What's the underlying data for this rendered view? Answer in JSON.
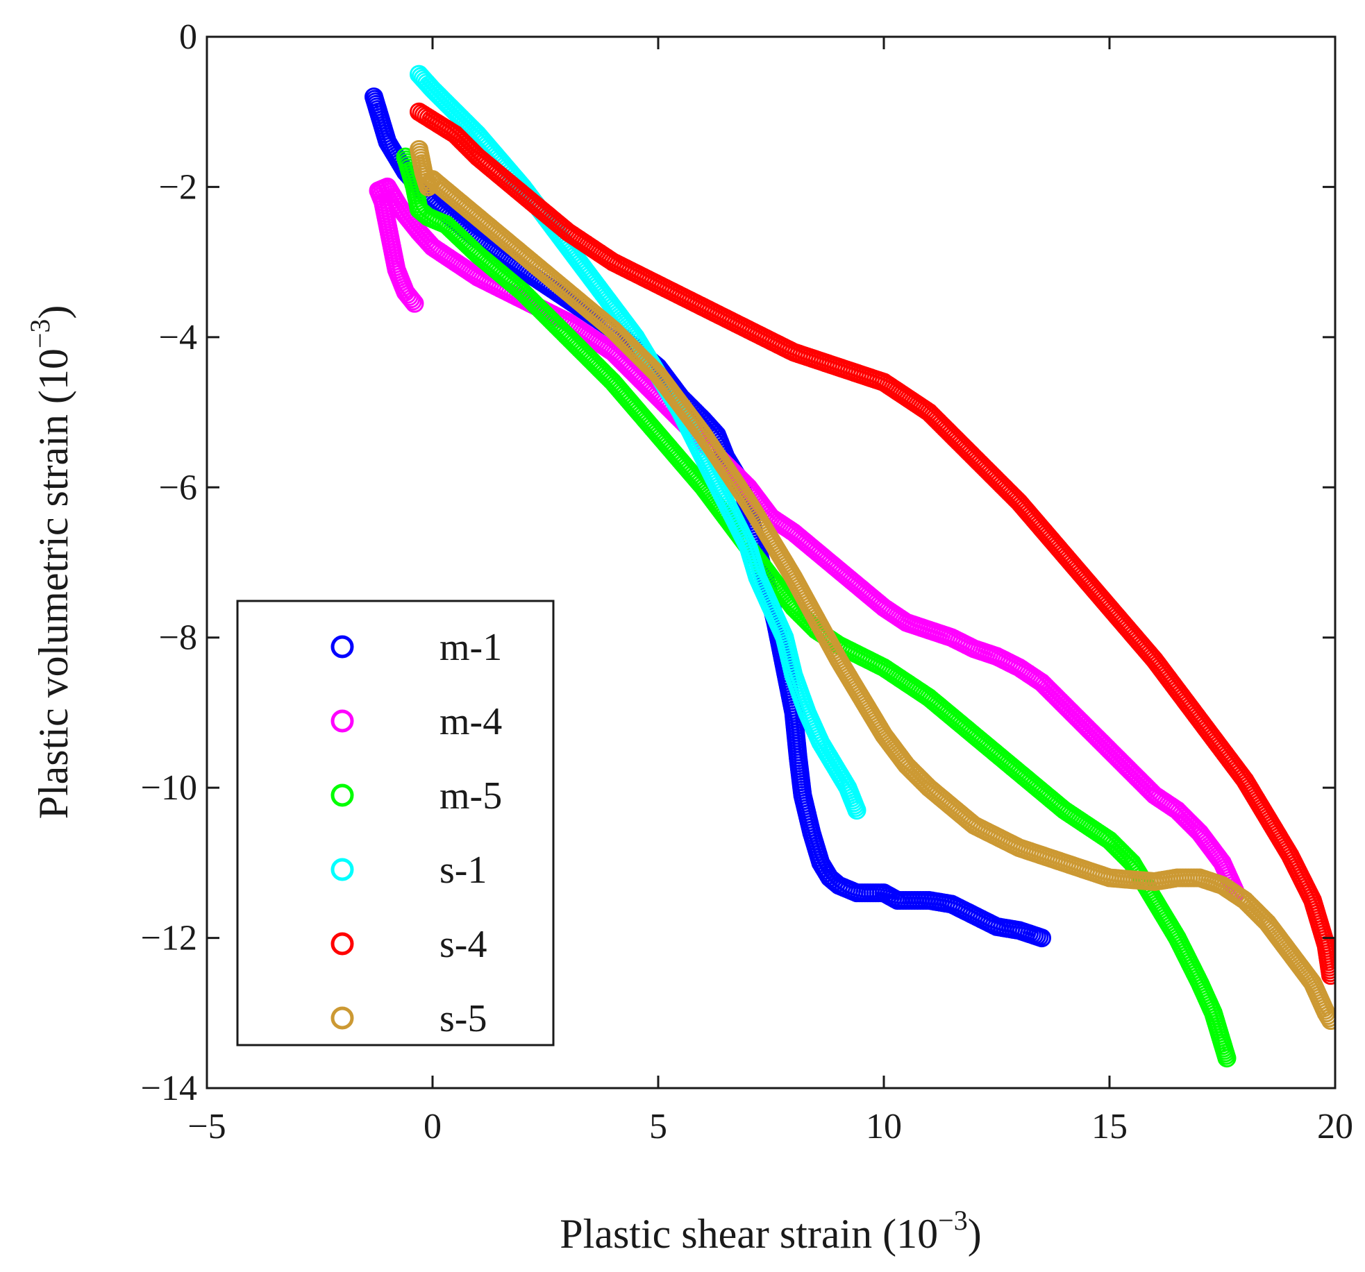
{
  "chart_data": {
    "type": "scatter",
    "title": "",
    "xlabel": "Plastic shear strain (10",
    "ylabel": "Plastic volumetric strain (10",
    "axis_exponent": "−3",
    "xlim": [
      -5,
      20
    ],
    "ylim": [
      -14,
      0
    ],
    "xticks": [
      -5,
      0,
      5,
      10,
      15,
      20
    ],
    "yticks": [
      0,
      -2,
      -4,
      -6,
      -8,
      -10,
      -12,
      -14
    ],
    "xtick_labels": [
      "−5",
      "0",
      "5",
      "10",
      "15",
      "20"
    ],
    "ytick_labels": [
      "0",
      "−2",
      "−4",
      "−6",
      "−8",
      "−10",
      "−12",
      "−14"
    ],
    "legend_position": "bottom-left",
    "marker": "open-circle",
    "series": [
      {
        "name": "m-1",
        "color": "#0000ff",
        "points": [
          [
            -1.3,
            -0.8
          ],
          [
            -1.2,
            -1.0
          ],
          [
            -1.0,
            -1.4
          ],
          [
            -0.6,
            -1.8
          ],
          [
            0.0,
            -2.2
          ],
          [
            1.0,
            -2.7
          ],
          [
            2.0,
            -3.1
          ],
          [
            3.0,
            -3.5
          ],
          [
            4.0,
            -3.9
          ],
          [
            4.5,
            -4.15
          ],
          [
            5.0,
            -4.4
          ],
          [
            5.5,
            -4.8
          ],
          [
            6.0,
            -5.1
          ],
          [
            6.3,
            -5.3
          ],
          [
            6.5,
            -5.6
          ],
          [
            6.8,
            -5.9
          ],
          [
            7.0,
            -6.3
          ],
          [
            7.2,
            -6.8
          ],
          [
            7.4,
            -7.3
          ],
          [
            7.6,
            -7.8
          ],
          [
            7.8,
            -8.4
          ],
          [
            8.0,
            -9.0
          ],
          [
            8.1,
            -9.6
          ],
          [
            8.2,
            -10.1
          ],
          [
            8.4,
            -10.6
          ],
          [
            8.6,
            -11.0
          ],
          [
            8.8,
            -11.2
          ],
          [
            9.0,
            -11.3
          ],
          [
            9.4,
            -11.4
          ],
          [
            10.0,
            -11.4
          ],
          [
            10.3,
            -11.5
          ],
          [
            11.0,
            -11.5
          ],
          [
            11.5,
            -11.55
          ],
          [
            12.0,
            -11.7
          ],
          [
            12.5,
            -11.85
          ],
          [
            13.0,
            -11.9
          ],
          [
            13.5,
            -12.0
          ]
        ]
      },
      {
        "name": "m-4",
        "color": "#ff00ff",
        "points": [
          [
            -0.4,
            -3.55
          ],
          [
            -0.6,
            -3.4
          ],
          [
            -0.8,
            -3.1
          ],
          [
            -0.9,
            -2.8
          ],
          [
            -1.0,
            -2.5
          ],
          [
            -1.1,
            -2.2
          ],
          [
            -1.2,
            -2.05
          ],
          [
            -1.0,
            -2.0
          ],
          [
            -0.7,
            -2.3
          ],
          [
            -0.3,
            -2.6
          ],
          [
            0.0,
            -2.8
          ],
          [
            1.0,
            -3.2
          ],
          [
            2.0,
            -3.5
          ],
          [
            3.0,
            -3.8
          ],
          [
            4.0,
            -4.2
          ],
          [
            5.0,
            -4.8
          ],
          [
            6.0,
            -5.4
          ],
          [
            7.0,
            -6.0
          ],
          [
            7.5,
            -6.4
          ],
          [
            8.0,
            -6.6
          ],
          [
            9.0,
            -7.1
          ],
          [
            10.0,
            -7.6
          ],
          [
            10.5,
            -7.8
          ],
          [
            11.0,
            -7.9
          ],
          [
            11.5,
            -8.0
          ],
          [
            12.0,
            -8.15
          ],
          [
            12.5,
            -8.25
          ],
          [
            13.0,
            -8.4
          ],
          [
            13.5,
            -8.6
          ],
          [
            14.0,
            -8.9
          ],
          [
            14.5,
            -9.2
          ],
          [
            15.0,
            -9.5
          ],
          [
            15.5,
            -9.8
          ],
          [
            16.0,
            -10.1
          ],
          [
            16.5,
            -10.3
          ],
          [
            17.0,
            -10.6
          ],
          [
            17.5,
            -11.0
          ],
          [
            17.8,
            -11.4
          ]
        ]
      },
      {
        "name": "m-5",
        "color": "#00ff00",
        "points": [
          [
            -0.6,
            -1.6
          ],
          [
            -0.4,
            -2.0
          ],
          [
            -0.3,
            -2.3
          ],
          [
            -0.1,
            -2.4
          ],
          [
            0.3,
            -2.5
          ],
          [
            1.0,
            -2.9
          ],
          [
            2.0,
            -3.4
          ],
          [
            3.0,
            -4.0
          ],
          [
            4.0,
            -4.6
          ],
          [
            5.0,
            -5.3
          ],
          [
            6.0,
            -6.0
          ],
          [
            6.5,
            -6.4
          ],
          [
            7.0,
            -6.8
          ],
          [
            7.5,
            -7.2
          ],
          [
            8.0,
            -7.6
          ],
          [
            8.5,
            -7.9
          ],
          [
            9.0,
            -8.1
          ],
          [
            10.0,
            -8.4
          ],
          [
            11.0,
            -8.8
          ],
          [
            12.0,
            -9.3
          ],
          [
            13.0,
            -9.8
          ],
          [
            14.0,
            -10.3
          ],
          [
            15.0,
            -10.7
          ],
          [
            15.5,
            -11.0
          ],
          [
            16.0,
            -11.5
          ],
          [
            16.5,
            -12.0
          ],
          [
            17.0,
            -12.6
          ],
          [
            17.3,
            -13.0
          ],
          [
            17.5,
            -13.4
          ],
          [
            17.6,
            -13.6
          ]
        ]
      },
      {
        "name": "s-1",
        "color": "#00ffff",
        "points": [
          [
            -0.3,
            -0.5
          ],
          [
            0.0,
            -0.7
          ],
          [
            0.5,
            -1.0
          ],
          [
            1.0,
            -1.3
          ],
          [
            2.0,
            -2.0
          ],
          [
            3.0,
            -2.8
          ],
          [
            4.0,
            -3.6
          ],
          [
            4.5,
            -4.0
          ],
          [
            5.0,
            -4.5
          ],
          [
            5.5,
            -5.0
          ],
          [
            6.0,
            -5.6
          ],
          [
            6.5,
            -6.2
          ],
          [
            7.0,
            -6.8
          ],
          [
            7.2,
            -7.2
          ],
          [
            7.5,
            -7.6
          ],
          [
            7.8,
            -8.0
          ],
          [
            8.0,
            -8.5
          ],
          [
            8.3,
            -9.0
          ],
          [
            8.6,
            -9.4
          ],
          [
            8.9,
            -9.7
          ],
          [
            9.2,
            -10.0
          ],
          [
            9.4,
            -10.3
          ]
        ]
      },
      {
        "name": "s-4",
        "color": "#ff0000",
        "points": [
          [
            -0.3,
            -1.0
          ],
          [
            0.5,
            -1.3
          ],
          [
            1.0,
            -1.6
          ],
          [
            2.0,
            -2.1
          ],
          [
            3.0,
            -2.6
          ],
          [
            4.0,
            -3.0
          ],
          [
            5.0,
            -3.3
          ],
          [
            6.0,
            -3.6
          ],
          [
            7.0,
            -3.9
          ],
          [
            8.0,
            -4.2
          ],
          [
            9.0,
            -4.4
          ],
          [
            10.0,
            -4.6
          ],
          [
            11.0,
            -5.0
          ],
          [
            12.0,
            -5.6
          ],
          [
            13.0,
            -6.2
          ],
          [
            14.0,
            -6.9
          ],
          [
            15.0,
            -7.6
          ],
          [
            16.0,
            -8.3
          ],
          [
            17.0,
            -9.1
          ],
          [
            18.0,
            -9.9
          ],
          [
            18.5,
            -10.4
          ],
          [
            19.0,
            -10.9
          ],
          [
            19.5,
            -11.5
          ],
          [
            19.8,
            -12.1
          ],
          [
            19.9,
            -12.5
          ]
        ]
      },
      {
        "name": "s-5",
        "color": "#cc9933",
        "points": [
          [
            -0.3,
            -1.5
          ],
          [
            -0.2,
            -1.8
          ],
          [
            -0.1,
            -2.0
          ],
          [
            0.0,
            -1.9
          ],
          [
            1.0,
            -2.4
          ],
          [
            2.0,
            -2.9
          ],
          [
            3.0,
            -3.4
          ],
          [
            4.0,
            -3.9
          ],
          [
            5.0,
            -4.5
          ],
          [
            6.0,
            -5.3
          ],
          [
            7.0,
            -6.2
          ],
          [
            8.0,
            -7.2
          ],
          [
            9.0,
            -8.3
          ],
          [
            10.0,
            -9.3
          ],
          [
            10.5,
            -9.7
          ],
          [
            11.0,
            -10.0
          ],
          [
            12.0,
            -10.5
          ],
          [
            13.0,
            -10.8
          ],
          [
            14.0,
            -11.0
          ],
          [
            15.0,
            -11.2
          ],
          [
            16.0,
            -11.25
          ],
          [
            16.5,
            -11.2
          ],
          [
            17.0,
            -11.2
          ],
          [
            17.5,
            -11.3
          ],
          [
            18.0,
            -11.5
          ],
          [
            18.5,
            -11.8
          ],
          [
            19.0,
            -12.2
          ],
          [
            19.5,
            -12.6
          ],
          [
            19.8,
            -13.0
          ],
          [
            19.9,
            -13.1
          ]
        ]
      }
    ]
  }
}
